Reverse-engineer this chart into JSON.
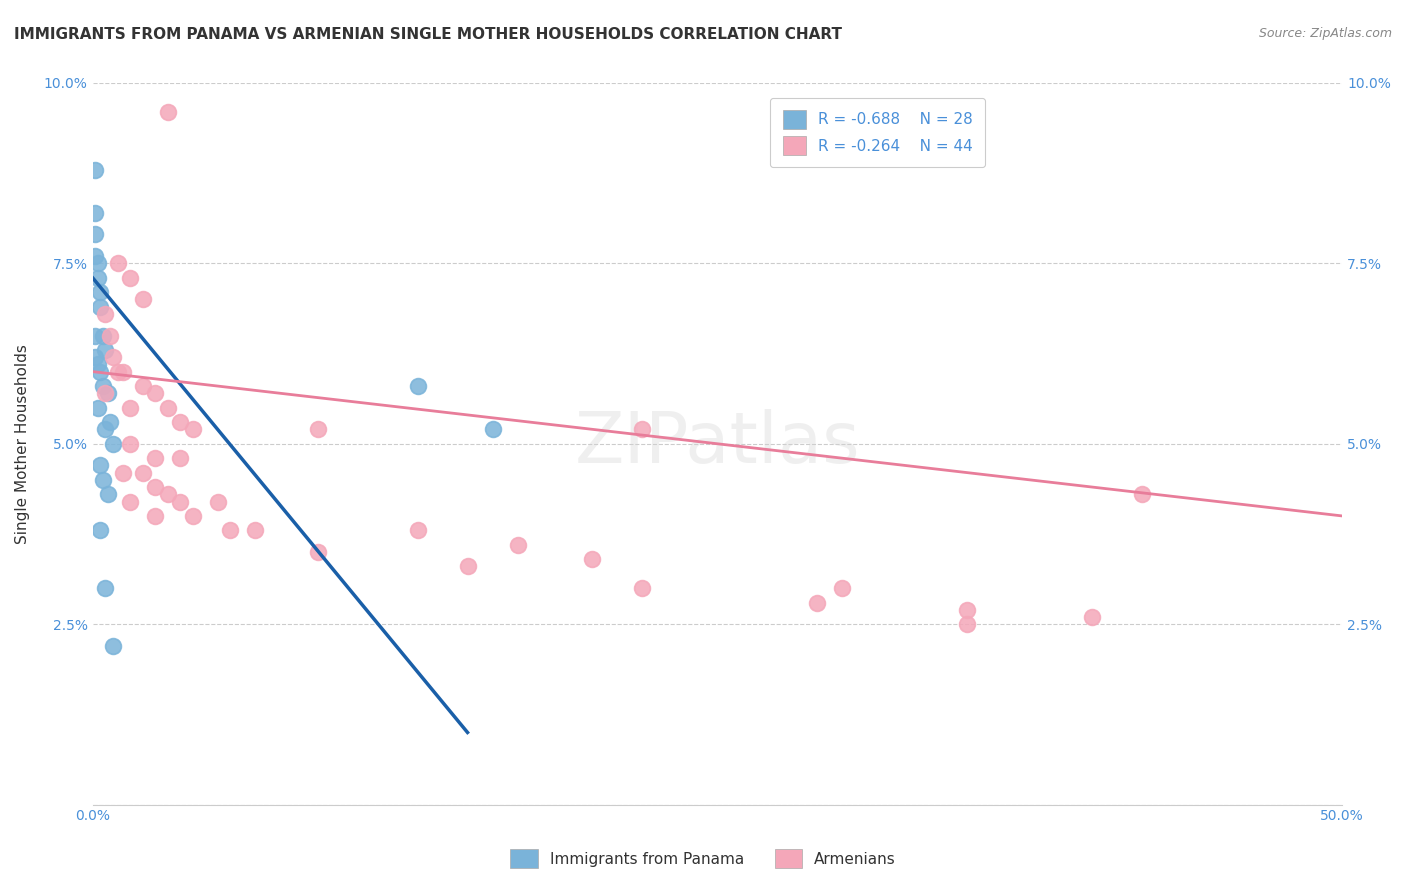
{
  "title": "IMMIGRANTS FROM PANAMA VS ARMENIAN SINGLE MOTHER HOUSEHOLDS CORRELATION CHART",
  "source_text": "Source: ZipAtlas.com",
  "xlabel": "",
  "ylabel": "Single Mother Households",
  "xlim": [
    0,
    0.5
  ],
  "ylim": [
    0,
    0.1
  ],
  "ytick_vals": [
    0,
    0.025,
    0.05,
    0.075,
    0.1
  ],
  "xtick_vals": [
    0,
    0.1,
    0.2,
    0.3,
    0.4,
    0.5
  ],
  "legend_r1": "R = -0.688",
  "legend_n1": "N = 28",
  "legend_r2": "R = -0.264",
  "legend_n2": "N = 44",
  "blue_color": "#7ab3d9",
  "pink_color": "#f4a7b9",
  "blue_line_color": "#1a5fa8",
  "pink_line_color": "#e87d9a",
  "blue_scatter": [
    [
      0.001,
      0.088
    ],
    [
      0.001,
      0.082
    ],
    [
      0.001,
      0.079
    ],
    [
      0.001,
      0.076
    ],
    [
      0.002,
      0.075
    ],
    [
      0.002,
      0.073
    ],
    [
      0.003,
      0.071
    ],
    [
      0.003,
      0.069
    ],
    [
      0.001,
      0.065
    ],
    [
      0.004,
      0.065
    ],
    [
      0.005,
      0.063
    ],
    [
      0.001,
      0.062
    ],
    [
      0.002,
      0.061
    ],
    [
      0.003,
      0.06
    ],
    [
      0.004,
      0.058
    ],
    [
      0.006,
      0.057
    ],
    [
      0.002,
      0.055
    ],
    [
      0.007,
      0.053
    ],
    [
      0.005,
      0.052
    ],
    [
      0.008,
      0.05
    ],
    [
      0.003,
      0.047
    ],
    [
      0.004,
      0.045
    ],
    [
      0.006,
      0.043
    ],
    [
      0.003,
      0.038
    ],
    [
      0.005,
      0.03
    ],
    [
      0.008,
      0.022
    ],
    [
      0.13,
      0.058
    ],
    [
      0.16,
      0.052
    ]
  ],
  "pink_scatter": [
    [
      0.03,
      0.096
    ],
    [
      0.01,
      0.075
    ],
    [
      0.015,
      0.073
    ],
    [
      0.02,
      0.07
    ],
    [
      0.005,
      0.068
    ],
    [
      0.007,
      0.065
    ],
    [
      0.008,
      0.062
    ],
    [
      0.01,
      0.06
    ],
    [
      0.012,
      0.06
    ],
    [
      0.02,
      0.058
    ],
    [
      0.005,
      0.057
    ],
    [
      0.025,
      0.057
    ],
    [
      0.015,
      0.055
    ],
    [
      0.03,
      0.055
    ],
    [
      0.035,
      0.053
    ],
    [
      0.04,
      0.052
    ],
    [
      0.22,
      0.052
    ],
    [
      0.09,
      0.052
    ],
    [
      0.015,
      0.05
    ],
    [
      0.025,
      0.048
    ],
    [
      0.035,
      0.048
    ],
    [
      0.012,
      0.046
    ],
    [
      0.02,
      0.046
    ],
    [
      0.025,
      0.044
    ],
    [
      0.03,
      0.043
    ],
    [
      0.015,
      0.042
    ],
    [
      0.035,
      0.042
    ],
    [
      0.05,
      0.042
    ],
    [
      0.025,
      0.04
    ],
    [
      0.04,
      0.04
    ],
    [
      0.055,
      0.038
    ],
    [
      0.065,
      0.038
    ],
    [
      0.13,
      0.038
    ],
    [
      0.17,
      0.036
    ],
    [
      0.09,
      0.035
    ],
    [
      0.2,
      0.034
    ],
    [
      0.15,
      0.033
    ],
    [
      0.22,
      0.03
    ],
    [
      0.3,
      0.03
    ],
    [
      0.29,
      0.028
    ],
    [
      0.35,
      0.027
    ],
    [
      0.4,
      0.026
    ],
    [
      0.35,
      0.025
    ],
    [
      0.42,
      0.043
    ]
  ],
  "watermark": "ZIPatlas",
  "background_color": "#ffffff",
  "grid_color": "#cccccc",
  "title_fontsize": 11,
  "axis_label_fontsize": 11,
  "tick_fontsize": 10,
  "legend_fontsize": 11,
  "source_fontsize": 9,
  "blue_line_x": [
    0.0,
    0.15
  ],
  "blue_line_y": [
    0.073,
    0.01
  ],
  "pink_line_x": [
    0.0,
    0.5
  ],
  "pink_line_y": [
    0.06,
    0.04
  ]
}
